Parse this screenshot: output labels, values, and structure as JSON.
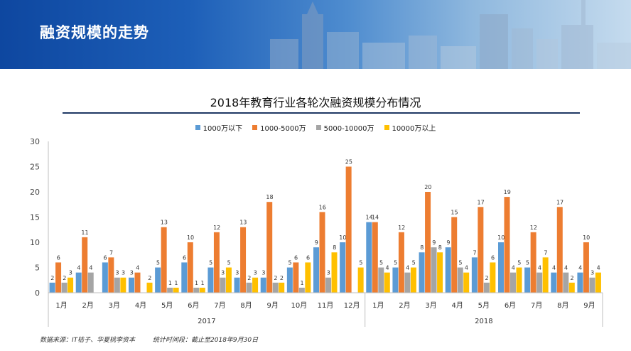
{
  "header": {
    "title": "融资规模的走势"
  },
  "chart_data": {
    "type": "bar",
    "title": "2018年教育行业各轮次融资规模分布情况",
    "categories": [
      "1月",
      "2月",
      "3月",
      "4月",
      "5月",
      "6月",
      "7月",
      "8月",
      "9月",
      "10月",
      "11月",
      "12月",
      "1月",
      "2月",
      "3月",
      "4月",
      "5月",
      "6月",
      "7月",
      "8月",
      "9月"
    ],
    "year_groups": [
      {
        "label": "2017",
        "count": 12
      },
      {
        "label": "2018",
        "count": 9
      }
    ],
    "series": [
      {
        "name": "1000万以下",
        "color": "#5b9bd5",
        "values": [
          2,
          4,
          6,
          3,
          5,
          6,
          5,
          3,
          3,
          5,
          9,
          10,
          14,
          5,
          8,
          9,
          7,
          10,
          5,
          4,
          4
        ]
      },
      {
        "name": "1000-5000万",
        "color": "#ed7d31",
        "values": [
          6,
          11,
          7,
          4,
          13,
          10,
          12,
          13,
          18,
          6,
          16,
          25,
          14,
          12,
          20,
          15,
          17,
          19,
          12,
          17,
          10
        ]
      },
      {
        "name": "5000-10000万",
        "color": "#a5a5a5",
        "values": [
          2,
          4,
          3,
          null,
          1,
          1,
          3,
          2,
          2,
          1,
          3,
          null,
          5,
          4,
          9,
          5,
          2,
          4,
          4,
          4,
          3
        ]
      },
      {
        "name": "10000万以上",
        "color": "#ffc000",
        "values": [
          3,
          null,
          3,
          2,
          1,
          1,
          5,
          3,
          2,
          6,
          8,
          5,
          4,
          5,
          8,
          4,
          6,
          5,
          7,
          2,
          4
        ]
      }
    ],
    "ylim": [
      0,
      30
    ],
    "yticks": [
      0,
      5,
      10,
      15,
      20,
      25,
      30
    ],
    "legend_position": "top-center",
    "grid": false
  },
  "footer": {
    "source": "数据来源：IT桔子、华夏桃李资本",
    "period": "统计时间段：截止至2018年9月30日"
  }
}
